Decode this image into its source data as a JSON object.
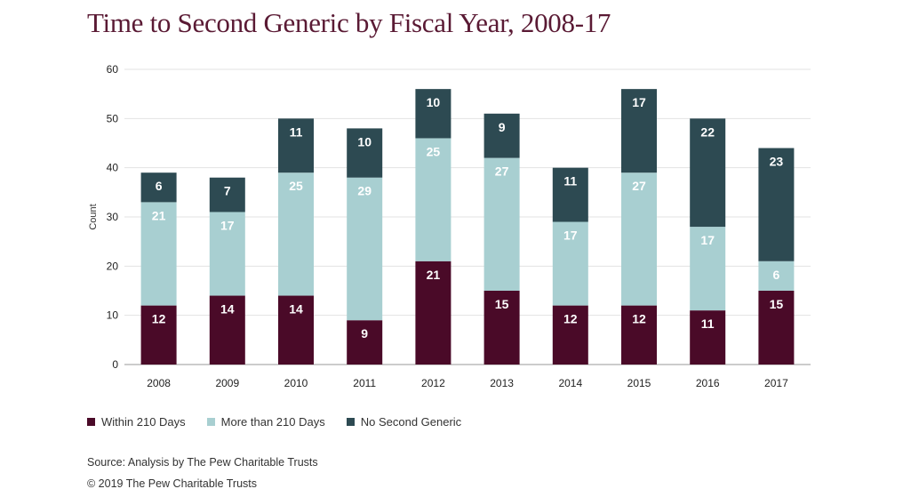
{
  "title": "Time to Second Generic by Fiscal Year, 2008-17",
  "source": "Source: Analysis by The Pew Charitable Trusts",
  "copyright": "© 2019 The Pew Charitable Trusts",
  "colors": {
    "within": "#4a0a28",
    "more": "#a8cfd1",
    "none": "#2d4a52"
  },
  "chart_data": {
    "type": "bar",
    "stacked": true,
    "title": "Time to Second Generic by Fiscal Year, 2008-17",
    "xlabel": "",
    "ylabel": "Count",
    "ylim": [
      0,
      60
    ],
    "yticks": [
      0,
      10,
      20,
      30,
      40,
      50,
      60
    ],
    "grid": true,
    "legend": "bottom-left",
    "categories": [
      "2008",
      "2009",
      "2010",
      "2011",
      "2012",
      "2013",
      "2014",
      "2015",
      "2016",
      "2017"
    ],
    "series": [
      {
        "name": "Within 210 Days",
        "values": [
          12,
          14,
          14,
          9,
          21,
          15,
          12,
          12,
          11,
          15
        ]
      },
      {
        "name": "More than 210 Days",
        "values": [
          21,
          17,
          25,
          29,
          25,
          27,
          17,
          27,
          17,
          6
        ]
      },
      {
        "name": "No Second Generic",
        "values": [
          6,
          7,
          11,
          10,
          10,
          9,
          11,
          17,
          22,
          23
        ]
      }
    ]
  }
}
